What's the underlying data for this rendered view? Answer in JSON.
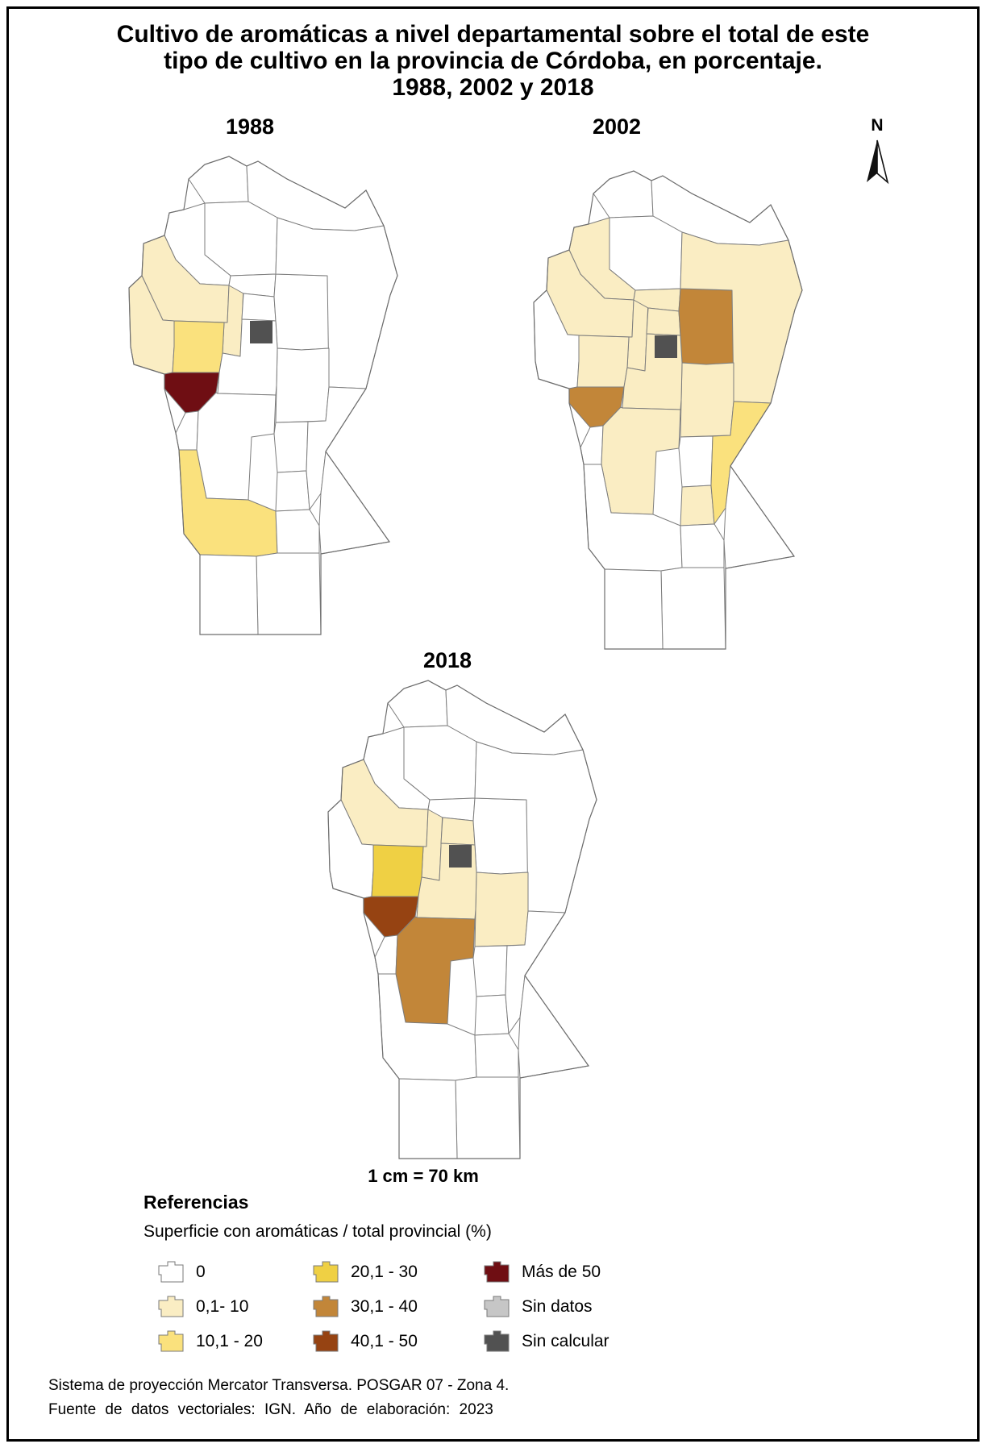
{
  "page": {
    "title_lines": [
      "Cultivo de aromáticas a nivel departamental sobre el total de este",
      "tipo de cultivo en la provincia de Córdoba, en porcentaje.",
      "1988, 2002 y 2018"
    ],
    "north_label": "N",
    "scale_text": "1 cm = 70 km",
    "footer_lines": [
      "Sistema de proyección Mercator Transversa. POSGAR 07 - Zona 4.",
      "Fuente de datos vectoriales: IGN. Año de elaboración: 2023"
    ]
  },
  "maps": [
    {
      "year": "1988"
    },
    {
      "year": "2002"
    },
    {
      "year": "2018"
    }
  ],
  "legend": {
    "heading": "Referencias",
    "subheading": "Superficie con aromáticas / total provincial (%)",
    "items": [
      {
        "label": "0",
        "class_key": "c0"
      },
      {
        "label": "0,1- 10",
        "class_key": "c1"
      },
      {
        "label": "10,1 - 20",
        "class_key": "c2"
      },
      {
        "label": "20,1 - 30",
        "class_key": "c3"
      },
      {
        "label": "30,1 - 40",
        "class_key": "c4"
      },
      {
        "label": "40,1 - 50",
        "class_key": "c5"
      },
      {
        "label": "Más de 50",
        "class_key": "c6"
      },
      {
        "label": "Sin datos",
        "class_key": "nd"
      },
      {
        "label": "Sin calcular",
        "class_key": "nc"
      }
    ]
  },
  "colors": {
    "c0": "#FFFFFF",
    "c1": "#FAEDC3",
    "c2": "#FAE17D",
    "c3": "#EFD044",
    "c4": "#C28639",
    "c5": "#964312",
    "c6": "#6F0E13",
    "nd": "#C6C6C6",
    "nc": "#515151",
    "boundary": "#7D7D7D",
    "outline": "#6E6E6E"
  },
  "map_data": {
    "type": "choropleth",
    "region": "Provincia de Córdoba, Argentina — departamentos",
    "variable": "Superficie con aromáticas / total provincial (%)",
    "years": [
      "1988",
      "2002",
      "2018"
    ],
    "class_labels": {
      "c0": "0",
      "c1": "0,1- 10",
      "c2": "10,1 - 20",
      "c3": "20,1 - 30",
      "c4": "30,1 - 40",
      "c5": "40,1 - 50",
      "c6": "Más de 50",
      "nd": "Sin datos",
      "nc": "Sin calcular"
    },
    "classification": {
      "1988": {
        "cruz_del_eje": "c1",
        "minas": "c1",
        "punilla": "c1",
        "pocho": "c2",
        "rio_cuarto": "c2",
        "san_alberto": "c6",
        "capital": "nc"
      },
      "2002": {
        "cruz_del_eje": "c1",
        "ischilin": "c1",
        "punilla": "c1",
        "pocho": "c1",
        "totoral": "c1",
        "colon": "c1",
        "santa_maria": "c1",
        "calamuchita": "c1",
        "rio_segundo": "c1",
        "general_san_martin": "c1",
        "san_justo": "c1",
        "union": "c2",
        "san_alberto": "c4",
        "rio_primero": "c4",
        "capital": "nc"
      },
      "2018": {
        "cruz_del_eje": "c1",
        "punilla": "c1",
        "colon": "c1",
        "santa_maria": "c1",
        "rio_segundo": "c1",
        "pocho": "c3",
        "calamuchita": "c4",
        "san_alberto": "c5",
        "capital": "nc"
      }
    }
  }
}
